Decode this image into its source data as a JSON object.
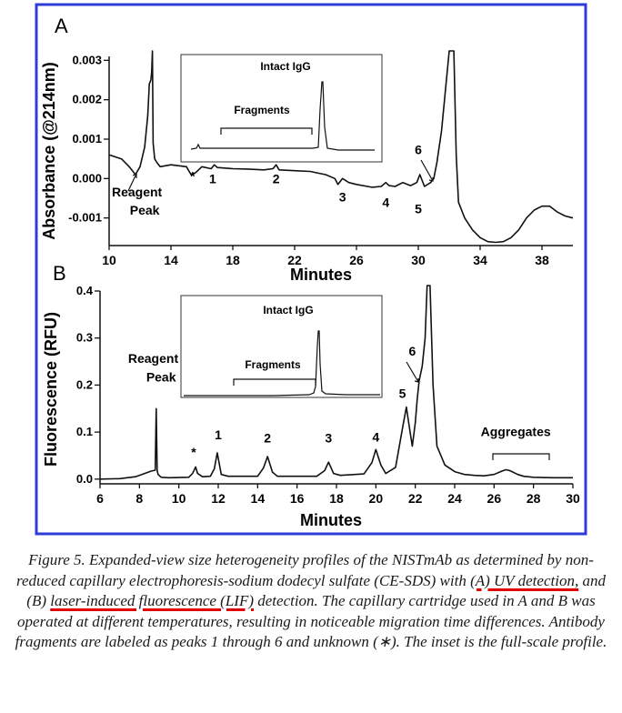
{
  "chart_data": [
    {
      "panel": "A",
      "type": "line",
      "xlabel": "Minutes",
      "ylabel": "Absorbance (@214nm)",
      "xlim": [
        10,
        40
      ],
      "ylim": [
        -0.0017,
        0.0031
      ],
      "xticks": [
        "10",
        "14",
        "18",
        "22",
        "26",
        "30",
        "34",
        "38"
      ],
      "yticks": [
        "0.003",
        "0.002",
        "0.001",
        "0.000",
        "-0.001"
      ],
      "series": [
        {
          "x": [
            10,
            10.8,
            11.3,
            11.7,
            12.0,
            12.3,
            12.5,
            12.6,
            12.7,
            12.75,
            12.8,
            12.85,
            12.95,
            13.1,
            13.3,
            14,
            15,
            15.3,
            15.6,
            16,
            16.6,
            16.8,
            17,
            18,
            19,
            20,
            20.6,
            20.8,
            21,
            22,
            23,
            24,
            24.6,
            24.8,
            25.1,
            25.5,
            26,
            27,
            27.6,
            27.9,
            28.1,
            28.5,
            29,
            29.5,
            29.9,
            30.1,
            30.4,
            30.8,
            31.0,
            31.2,
            31.5,
            32.0,
            32.3,
            32.45,
            32.6,
            33,
            33.5,
            34.0,
            34.5,
            35.0,
            35.5,
            36.0,
            36.5,
            37.0,
            37.5,
            38.0,
            38.5,
            39.0,
            39.5,
            40
          ],
          "y": [
            0.0006,
            0.0005,
            0.0003,
            0.0001,
            0.0003,
            0.0008,
            0.0016,
            0.0024,
            0.0025,
            0.0027,
            0.004,
            0.0009,
            0.0005,
            0.0004,
            0.0003,
            0.00035,
            0.0003,
            0.0001,
            0.00015,
            0.0003,
            0.00025,
            0.00035,
            0.00028,
            0.00025,
            0.00024,
            0.00022,
            0.00025,
            0.00035,
            0.00022,
            0.0002,
            0.00018,
            0.0001,
            0.0,
            -0.00015,
            0.0,
            -0.0001,
            -0.00015,
            -0.00022,
            -0.0002,
            -0.0001,
            -0.00018,
            -0.0002,
            -0.0001,
            -0.00018,
            -0.0001,
            0.0001,
            -0.0002,
            -0.0001,
            0.0,
            0.0004,
            0.0012,
            0.004,
            0.004,
            0.0006,
            -0.0006,
            -0.001,
            -0.0013,
            -0.0015,
            -0.0016,
            -0.00162,
            -0.0016,
            -0.0015,
            -0.0013,
            -0.001,
            -0.0008,
            -0.0007,
            -0.0007,
            -0.00085,
            -0.00095,
            -0.001
          ]
        }
      ],
      "annotations": [
        {
          "text": "Reagent",
          "x": 11.8,
          "y": -0.00045
        },
        {
          "text": "Peak",
          "x": 12.3,
          "y": -0.00092
        },
        {
          "text": "*",
          "x": 15.4,
          "y": -5e-05
        },
        {
          "text": "1",
          "x": 16.7,
          "y": -0.00012
        },
        {
          "text": "2",
          "x": 20.8,
          "y": -0.00012
        },
        {
          "text": "3",
          "x": 25.1,
          "y": -0.00058
        },
        {
          "text": "4",
          "x": 27.9,
          "y": -0.00072
        },
        {
          "text": "5",
          "x": 30.0,
          "y": -0.00088
        },
        {
          "text": "6",
          "x": 30.0,
          "y": 0.00062
        }
      ],
      "inset": {
        "labels": {
          "peak": "Intact IgG",
          "bracket": "Fragments"
        }
      }
    },
    {
      "panel": "B",
      "type": "line",
      "xlabel": "Minutes",
      "ylabel": "Fluorescence (RFU)",
      "xlim": [
        6,
        30
      ],
      "ylim": [
        -0.01,
        0.4
      ],
      "xticks": [
        "6",
        "8",
        "10",
        "12",
        "14",
        "16",
        "18",
        "20",
        "22",
        "24",
        "26",
        "28",
        "30"
      ],
      "yticks": [
        "0.4",
        "0.3",
        "0.2",
        "0.1",
        "0.0"
      ],
      "series": [
        {
          "x": [
            6,
            7,
            7.8,
            8.2,
            8.6,
            8.8,
            8.85,
            8.9,
            8.95,
            9.1,
            9.5,
            10.5,
            10.7,
            10.85,
            10.95,
            11.2,
            11.6,
            11.8,
            11.95,
            12.15,
            12.5,
            14.0,
            14.3,
            14.5,
            14.75,
            15.0,
            17.0,
            17.4,
            17.6,
            17.85,
            18.2,
            19.4,
            19.8,
            20.0,
            20.25,
            20.5,
            21.0,
            21.4,
            21.55,
            21.7,
            21.85,
            22.0,
            22.1,
            22.2,
            22.35,
            22.5,
            22.6,
            22.75,
            22.9,
            23.1,
            23.5,
            24.0,
            24.5,
            25.0,
            25.5,
            26.0,
            26.4,
            26.6,
            26.8,
            27.2,
            27.5,
            28.0,
            29.0,
            30
          ],
          "y": [
            0.0,
            0.001,
            0.005,
            0.011,
            0.017,
            0.019,
            0.15,
            0.018,
            0.01,
            0.004,
            0.003,
            0.004,
            0.012,
            0.026,
            0.012,
            0.005,
            0.006,
            0.022,
            0.056,
            0.01,
            0.006,
            0.006,
            0.024,
            0.048,
            0.015,
            0.006,
            0.006,
            0.018,
            0.036,
            0.012,
            0.008,
            0.011,
            0.035,
            0.063,
            0.03,
            0.012,
            0.025,
            0.12,
            0.153,
            0.11,
            0.07,
            0.12,
            0.17,
            0.21,
            0.24,
            0.3,
            0.45,
            0.45,
            0.2,
            0.07,
            0.03,
            0.016,
            0.01,
            0.008,
            0.007,
            0.01,
            0.017,
            0.02,
            0.018,
            0.01,
            0.006,
            0.004,
            0.003,
            0.003
          ]
        }
      ],
      "annotations": [
        {
          "text": "Reagent",
          "x": 8.7,
          "y": 0.247
        },
        {
          "text": "Peak",
          "x": 9.1,
          "y": 0.208
        },
        {
          "text": "*",
          "x": 10.75,
          "y": 0.048
        },
        {
          "text": "1",
          "x": 12.0,
          "y": 0.085
        },
        {
          "text": "2",
          "x": 14.5,
          "y": 0.078
        },
        {
          "text": "3",
          "x": 17.6,
          "y": 0.078
        },
        {
          "text": "4",
          "x": 20.0,
          "y": 0.08
        },
        {
          "text": "5",
          "x": 21.35,
          "y": 0.173
        },
        {
          "text": "6",
          "x": 21.85,
          "y": 0.263
        },
        {
          "text": "Aggregates",
          "x": 27.1,
          "y": 0.092
        }
      ],
      "inset": {
        "labels": {
          "peak": "Intact IgG",
          "bracket": "Fragments"
        }
      }
    }
  ],
  "panel_labels": [
    "A",
    "B"
  ],
  "caption": {
    "lead": "Figure 5.  Expanded-view size heterogeneity profiles of the NISTmAb as determined by non-reduced capillary electrophoresis-sodium dodecyl sulfate (CE-SDS) with ",
    "hl1": "(A) UV detection,",
    "mid": " and (B) ",
    "hl2": "laser-induced fluorescence (LIF)",
    "tail": " detection.  The capillary cartridge used in A and B was operated at different temperatures, resulting in noticeable migration time differences.  Antibody fragments are labeled as peaks 1 through 6 and unknown (∗). The inset is the full-scale profile."
  },
  "colors": {
    "frame": "#2f3cd6",
    "trace": "#111111",
    "underline": "#e00000"
  }
}
